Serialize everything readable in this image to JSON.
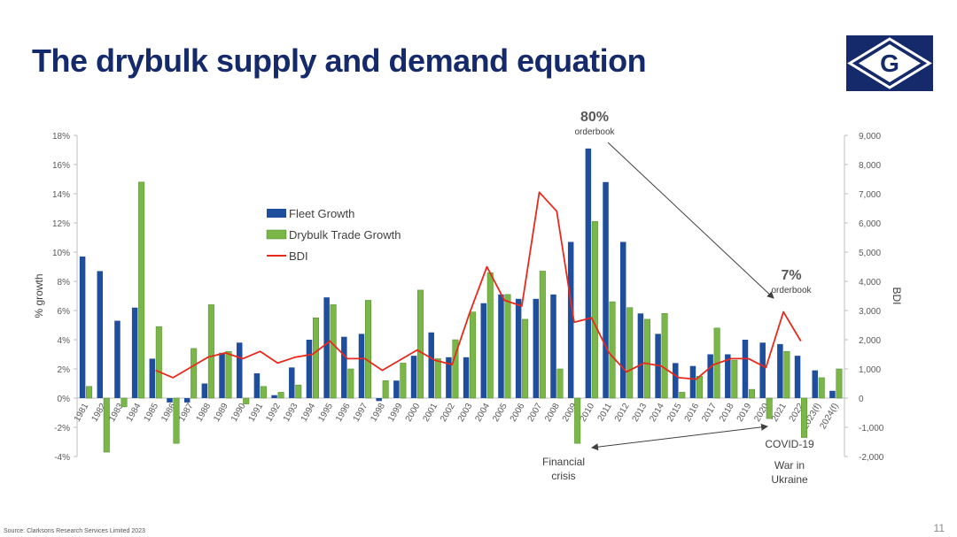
{
  "page": {
    "title": "The drybulk supply and demand equation",
    "source": "Source: Clarksons Research Services Limited 2023",
    "page_number": "11",
    "logo_letter": "G"
  },
  "colors": {
    "title": "#142a6b",
    "fleet": "#1f4e9c",
    "trade": "#7ab648",
    "bdi": "#e8291c",
    "logo_bg": "#142a6b"
  },
  "chart_data": {
    "type": "bar",
    "categories": [
      "1981",
      "1982",
      "1983",
      "1984",
      "1985",
      "1986",
      "1987",
      "1988",
      "1989",
      "1990",
      "1991",
      "1992",
      "1993",
      "1994",
      "1995",
      "1996",
      "1997",
      "1998",
      "1999",
      "2000",
      "2001",
      "2002",
      "2003",
      "2004",
      "2005",
      "2006",
      "2007",
      "2008",
      "2009",
      "2010",
      "2011",
      "2012",
      "2013",
      "2014",
      "2015",
      "2016",
      "2017",
      "2018",
      "2019",
      "2020",
      "2021",
      "2022",
      "2023(f)",
      "2024(f)"
    ],
    "series": [
      {
        "name": "Fleet Growth",
        "kind": "bar",
        "axis": "left",
        "values": [
          9.7,
          8.7,
          5.3,
          6.2,
          2.7,
          -0.3,
          -0.3,
          1.0,
          3.1,
          3.8,
          1.7,
          0.2,
          2.1,
          4.0,
          6.9,
          4.2,
          4.4,
          -0.2,
          1.2,
          2.9,
          4.5,
          2.8,
          2.8,
          6.5,
          7.1,
          6.8,
          6.8,
          7.1,
          10.7,
          17.1,
          14.8,
          10.7,
          5.8,
          4.4,
          2.4,
          2.2,
          3.0,
          3.0,
          4.0,
          3.8,
          3.7,
          2.9,
          1.9,
          0.5
        ]
      },
      {
        "name": "Drybulk Trade Growth",
        "kind": "bar",
        "axis": "left",
        "values": [
          0.8,
          -3.7,
          -0.6,
          14.8,
          4.9,
          -3.1,
          3.4,
          6.4,
          3.2,
          -0.4,
          0.8,
          0.4,
          0.9,
          5.5,
          6.4,
          2.0,
          6.7,
          1.2,
          2.4,
          7.4,
          2.7,
          4.0,
          5.9,
          8.6,
          7.1,
          5.4,
          8.7,
          2.0,
          -3.1,
          12.1,
          6.6,
          6.2,
          5.4,
          5.8,
          0.4,
          1.5,
          4.8,
          2.6,
          0.6,
          -1.4,
          3.2,
          -2.7,
          1.4,
          2.0
        ]
      },
      {
        "name": "BDI",
        "kind": "line",
        "axis": "right",
        "values": [
          null,
          null,
          null,
          null,
          950,
          700,
          1050,
          1400,
          1550,
          1350,
          1600,
          1200,
          1400,
          1500,
          1950,
          1350,
          1350,
          950,
          1300,
          1650,
          1300,
          1150,
          2900,
          4500,
          3350,
          3150,
          7050,
          6400,
          2600,
          2750,
          1550,
          900,
          1200,
          1100,
          700,
          650,
          1150,
          1350,
          1350,
          1050,
          2950,
          1950,
          null,
          null
        ]
      }
    ],
    "left_axis": {
      "title": "% growth",
      "min": -4,
      "max": 18,
      "step": 2,
      "tick_labels": [
        "-4%",
        "-2%",
        "0%",
        "2%",
        "4%",
        "6%",
        "8%",
        "10%",
        "12%",
        "14%",
        "16%",
        "18%"
      ]
    },
    "right_axis": {
      "title": "BDI",
      "min": -2000,
      "max": 9000,
      "step": 1000,
      "tick_labels": [
        "-2,000",
        "-1,000",
        "0",
        "1,000",
        "2,000",
        "3,000",
        "4,000",
        "5,000",
        "6,000",
        "7,000",
        "8,000",
        "9,000"
      ]
    },
    "legend_position": "upper-left inside",
    "annotations": {
      "orderbook_2010_pct": "80%",
      "orderbook_2010_label": "orderbook",
      "orderbook_2021_pct": "7%",
      "orderbook_2021_label": "orderbook",
      "financial_crisis_line1": "Financial",
      "financial_crisis_line2": "crisis",
      "covid": "COVID-19",
      "war_line1": "War in",
      "war_line2": "Ukraine"
    }
  }
}
